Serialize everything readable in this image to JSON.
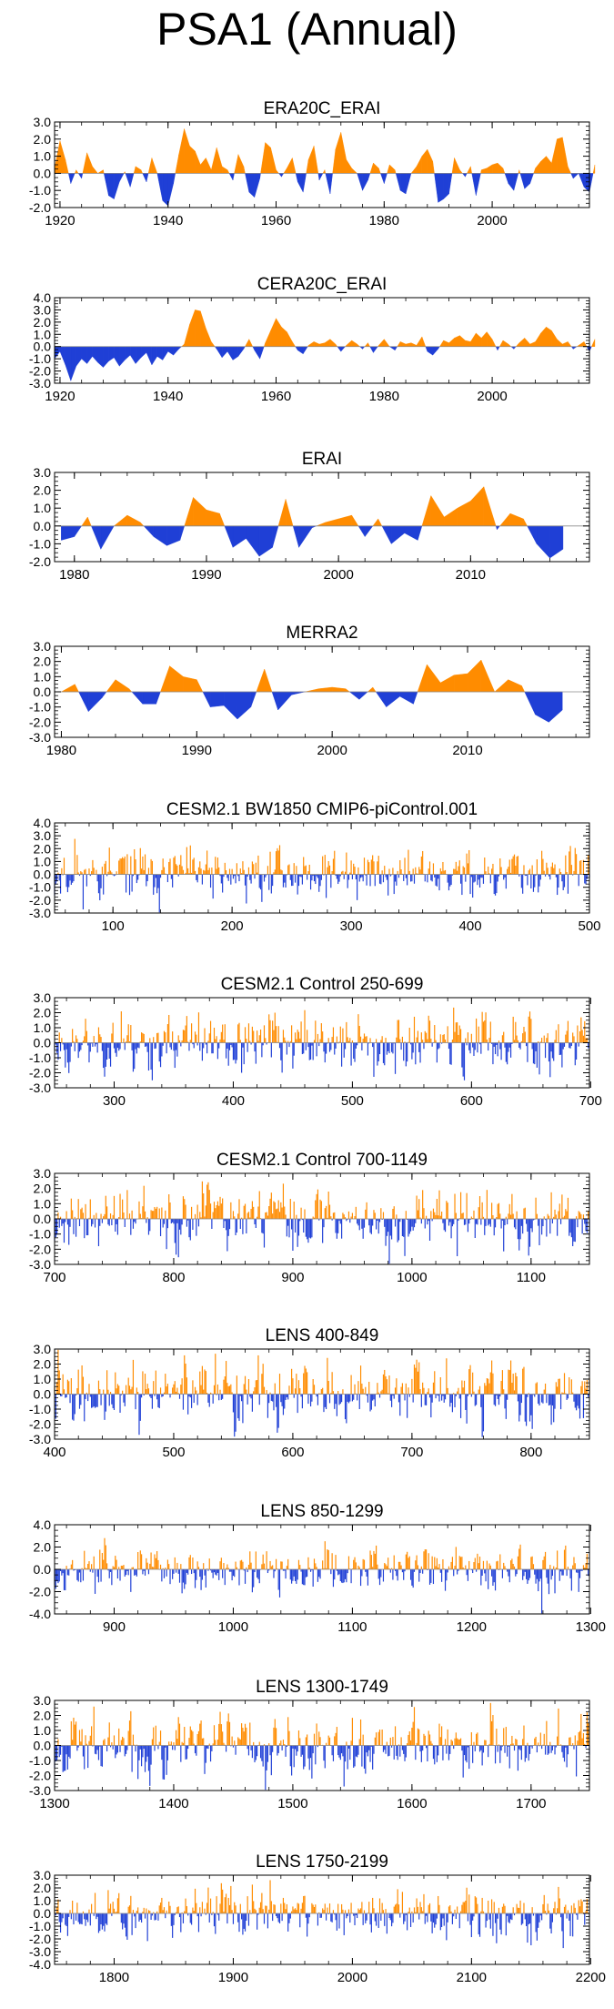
{
  "page": {
    "title": "PSA1 (Annual)"
  },
  "colors": {
    "positive": "#ff8c00",
    "negative": "#1f3fd6",
    "axis": "#000000"
  },
  "chart_data": [
    {
      "type": "area",
      "title": "ERA20C_ERAI",
      "xlim": [
        1919,
        2018
      ],
      "ylim": [
        -2.0,
        3.0
      ],
      "yticks": [
        -2.0,
        -1.0,
        0.0,
        1.0,
        2.0,
        3.0
      ],
      "ytick_labels": [
        "-2.0",
        "-1.0",
        "0.0",
        "1.0",
        "2.0",
        "3.0"
      ],
      "xticks": [
        1920,
        1940,
        1960,
        1980,
        2000
      ],
      "xtick_labels": [
        "1920",
        "1940",
        "1960",
        "1980",
        "2000"
      ],
      "x_start": 1919,
      "values": [
        0.3,
        1.9,
        0.8,
        -0.6,
        0.2,
        -0.3,
        1.2,
        0.4,
        0.0,
        0.2,
        -1.3,
        -1.5,
        -0.5,
        0.1,
        -0.8,
        0.4,
        0.2,
        -0.5,
        0.9,
        0.0,
        -1.6,
        -1.9,
        -0.6,
        1.1,
        2.6,
        1.6,
        1.3,
        0.5,
        0.9,
        0.2,
        1.5,
        0.4,
        0.2,
        -0.4,
        1.1,
        0.4,
        -1.1,
        -1.4,
        -0.3,
        1.8,
        1.5,
        0.2,
        -0.2,
        0.3,
        0.9,
        -0.5,
        -1.1,
        0.8,
        1.6,
        -0.4,
        0.2,
        -1.2,
        1.4,
        2.4,
        0.8,
        0.3,
        0.0,
        -1.0,
        -0.4,
        0.6,
        0.3,
        -0.6,
        0.5,
        0.2,
        -1.0,
        -1.2,
        0.0,
        0.4,
        1.0,
        1.4,
        0.7,
        -1.7,
        -1.5,
        -1.2,
        0.9,
        0.2,
        -0.2,
        0.4,
        -1.3,
        0.2,
        0.3,
        0.5,
        0.6,
        0.3,
        -0.6,
        -1.0,
        0.2,
        -0.9,
        -0.6,
        0.3,
        0.7,
        1.0,
        0.6,
        2.0,
        2.1,
        0.4,
        -0.3,
        0.0,
        -0.8,
        -1.1,
        0.5
      ]
    },
    {
      "type": "area",
      "title": "CERA20C_ERAI",
      "xlim": [
        1919,
        2018
      ],
      "ylim": [
        -3.0,
        4.0
      ],
      "yticks": [
        -3.0,
        -2.0,
        -1.0,
        0.0,
        1.0,
        2.0,
        3.0,
        4.0
      ],
      "ytick_labels": [
        "-3.0",
        "-2.0",
        "-1.0",
        "0.0",
        "1.0",
        "2.0",
        "3.0",
        "4.0"
      ],
      "xticks": [
        1920,
        1940,
        1960,
        1980,
        2000
      ],
      "xtick_labels": [
        "1920",
        "1940",
        "1960",
        "1980",
        "2000"
      ],
      "x_start": 1919,
      "values": [
        -1.0,
        -0.4,
        -1.5,
        -2.8,
        -1.6,
        -1.0,
        -1.4,
        -0.8,
        -1.3,
        -1.7,
        -1.2,
        -0.9,
        -1.6,
        -1.1,
        -0.7,
        -1.4,
        -0.9,
        -0.5,
        -1.5,
        -0.8,
        -1.1,
        -0.4,
        -0.7,
        -0.2,
        0.2,
        1.8,
        3.0,
        2.9,
        1.5,
        0.4,
        -0.2,
        -0.9,
        -0.4,
        -1.1,
        -0.8,
        -0.2,
        0.6,
        -0.3,
        -1.0,
        0.3,
        1.3,
        2.3,
        1.6,
        1.2,
        0.4,
        -0.3,
        -0.6,
        0.1,
        0.4,
        0.2,
        0.3,
        0.6,
        0.2,
        -0.4,
        0.1,
        0.5,
        0.2,
        -0.2,
        0.3,
        -0.5,
        0.1,
        0.6,
        0.0,
        -0.3,
        0.4,
        0.2,
        0.3,
        0.1,
        0.8,
        -0.4,
        -0.7,
        -0.2,
        0.5,
        0.3,
        0.7,
        0.9,
        0.5,
        0.4,
        1.1,
        0.7,
        1.2,
        0.6,
        -0.3,
        0.5,
        0.2,
        -0.2,
        0.3,
        0.7,
        0.2,
        0.4,
        1.1,
        1.6,
        1.3,
        0.6,
        0.2,
        0.4,
        -0.2,
        0.1,
        0.4,
        -0.4,
        0.6
      ]
    },
    {
      "type": "area",
      "title": "ERAI",
      "xlim": [
        1978.5,
        2019
      ],
      "ylim": [
        -2.0,
        3.0
      ],
      "yticks": [
        -2.0,
        -1.0,
        0.0,
        1.0,
        2.0,
        3.0
      ],
      "ytick_labels": [
        "-2.0",
        "-1.0",
        "0.0",
        "1.0",
        "2.0",
        "3.0"
      ],
      "xticks": [
        1980,
        1990,
        2000,
        2010
      ],
      "xtick_labels": [
        "1980",
        "1990",
        "2000",
        "2010"
      ],
      "x_start": 1979,
      "values": [
        -0.8,
        -0.6,
        0.5,
        -1.3,
        0.0,
        0.6,
        0.2,
        -0.6,
        -1.1,
        -0.8,
        1.6,
        0.9,
        0.7,
        -1.2,
        -0.7,
        -1.7,
        -1.2,
        1.5,
        -1.2,
        -0.1,
        0.2,
        0.4,
        0.6,
        -0.6,
        0.4,
        -1.0,
        -0.4,
        -0.8,
        1.7,
        0.5,
        1.0,
        1.4,
        2.2,
        -0.2,
        0.7,
        0.4,
        -1.0,
        -1.8,
        -1.3
      ]
    },
    {
      "type": "area",
      "title": "MERRA2",
      "xlim": [
        1979.5,
        2019
      ],
      "ylim": [
        -3.0,
        3.0
      ],
      "yticks": [
        -3.0,
        -2.0,
        -1.0,
        0.0,
        1.0,
        2.0,
        3.0
      ],
      "ytick_labels": [
        "-3.0",
        "-2.0",
        "-1.0",
        "0.0",
        "1.0",
        "2.0",
        "3.0"
      ],
      "xticks": [
        1980,
        1990,
        2000,
        2010
      ],
      "xtick_labels": [
        "1980",
        "1990",
        "2000",
        "2010"
      ],
      "x_start": 1980,
      "values": [
        0.0,
        0.5,
        -1.3,
        -0.4,
        0.8,
        0.2,
        -0.8,
        -0.8,
        1.7,
        1.0,
        0.8,
        -1.0,
        -0.9,
        -1.8,
        -1.0,
        1.5,
        -1.2,
        -0.2,
        0.0,
        0.2,
        0.3,
        0.2,
        -0.5,
        0.3,
        -1.0,
        -0.3,
        -0.8,
        1.8,
        0.6,
        1.1,
        1.2,
        2.1,
        0.0,
        0.8,
        0.4,
        -1.5,
        -2.0,
        -1.2
      ]
    },
    {
      "type": "bar",
      "title": "CESM2.1 BW1850 CMIP6-piControl.001",
      "xlim": [
        51,
        500
      ],
      "ylim": [
        -3.0,
        4.0
      ],
      "yticks": [
        -3.0,
        -2.0,
        -1.0,
        0.0,
        1.0,
        2.0,
        3.0,
        4.0
      ],
      "ytick_labels": [
        "-3.0",
        "-2.0",
        "-1.0",
        "0.0",
        "1.0",
        "2.0",
        "3.0",
        "4.0"
      ],
      "xticks": [
        100,
        200,
        300,
        400,
        500
      ],
      "xtick_labels": [
        "100",
        "200",
        "300",
        "400",
        "500"
      ],
      "x_start": 51,
      "n": 450,
      "seed": 11,
      "amp": 1.0
    },
    {
      "type": "bar",
      "title": "CESM2.1 Control 250-699",
      "xlim": [
        250,
        699
      ],
      "ylim": [
        -3.0,
        3.0
      ],
      "yticks": [
        -3.0,
        -2.0,
        -1.0,
        0.0,
        1.0,
        2.0,
        3.0
      ],
      "ytick_labels": [
        "-3.0",
        "-2.0",
        "-1.0",
        "0.0",
        "1.0",
        "2.0",
        "3.0"
      ],
      "xticks": [
        300,
        400,
        500,
        600,
        700
      ],
      "xtick_labels": [
        "300",
        "400",
        "500",
        "600",
        "700"
      ],
      "x_start": 250,
      "n": 450,
      "seed": 23,
      "amp": 1.0
    },
    {
      "type": "bar",
      "title": "CESM2.1 Control 700-1149",
      "xlim": [
        700,
        1149
      ],
      "ylim": [
        -3.0,
        3.0
      ],
      "yticks": [
        -3.0,
        -2.0,
        -1.0,
        0.0,
        1.0,
        2.0,
        3.0
      ],
      "ytick_labels": [
        "-3.0",
        "-2.0",
        "-1.0",
        "0.0",
        "1.0",
        "2.0",
        "3.0"
      ],
      "xticks": [
        700,
        800,
        900,
        1000,
        1100
      ],
      "xtick_labels": [
        "700",
        "800",
        "900",
        "1000",
        "1100"
      ],
      "x_start": 700,
      "n": 450,
      "seed": 37,
      "amp": 1.0
    },
    {
      "type": "bar",
      "title": "LENS 400-849",
      "xlim": [
        400,
        849
      ],
      "ylim": [
        -3.0,
        3.0
      ],
      "yticks": [
        -3.0,
        -2.0,
        -1.0,
        0.0,
        1.0,
        2.0,
        3.0
      ],
      "ytick_labels": [
        "-3.0",
        "-2.0",
        "-1.0",
        "0.0",
        "1.0",
        "2.0",
        "3.0"
      ],
      "xticks": [
        400,
        500,
        600,
        700,
        800
      ],
      "xtick_labels": [
        "400",
        "500",
        "600",
        "700",
        "800"
      ],
      "x_start": 400,
      "n": 450,
      "seed": 41,
      "amp": 1.0
    },
    {
      "type": "bar",
      "title": "LENS 850-1299",
      "xlim": [
        850,
        1299
      ],
      "ylim": [
        -4.0,
        4.0
      ],
      "yticks": [
        -4.0,
        -2.0,
        0.0,
        2.0,
        4.0
      ],
      "ytick_labels": [
        "-4.0",
        "-2.0",
        "0.0",
        "2.0",
        "4.0"
      ],
      "xticks": [
        900,
        1000,
        1100,
        1200,
        1300
      ],
      "xtick_labels": [
        "900",
        "1000",
        "1100",
        "1200",
        "1300"
      ],
      "x_start": 850,
      "n": 450,
      "seed": 53,
      "amp": 1.0
    },
    {
      "type": "bar",
      "title": "LENS 1300-1749",
      "xlim": [
        1300,
        1749
      ],
      "ylim": [
        -3.0,
        3.0
      ],
      "yticks": [
        -3.0,
        -2.0,
        -1.0,
        0.0,
        1.0,
        2.0,
        3.0
      ],
      "ytick_labels": [
        "-3.0",
        "-2.0",
        "-1.0",
        "0.0",
        "1.0",
        "2.0",
        "3.0"
      ],
      "xticks": [
        1300,
        1400,
        1500,
        1600,
        1700
      ],
      "xtick_labels": [
        "1300",
        "1400",
        "1500",
        "1600",
        "1700"
      ],
      "x_start": 1300,
      "n": 450,
      "seed": 67,
      "amp": 1.0
    },
    {
      "type": "bar",
      "title": "LENS 1750-2199",
      "xlim": [
        1750,
        2199
      ],
      "ylim": [
        -4.0,
        3.0
      ],
      "yticks": [
        -4.0,
        -3.0,
        -2.0,
        -1.0,
        0.0,
        1.0,
        2.0,
        3.0
      ],
      "ytick_labels": [
        "-4.0",
        "-3.0",
        "-2.0",
        "-1.0",
        "0.0",
        "1.0",
        "2.0",
        "3.0"
      ],
      "xticks": [
        1800,
        1900,
        2000,
        2100,
        2200
      ],
      "xtick_labels": [
        "1800",
        "1900",
        "2000",
        "2100",
        "2200"
      ],
      "x_start": 1750,
      "n": 450,
      "seed": 79,
      "amp": 1.0
    }
  ]
}
